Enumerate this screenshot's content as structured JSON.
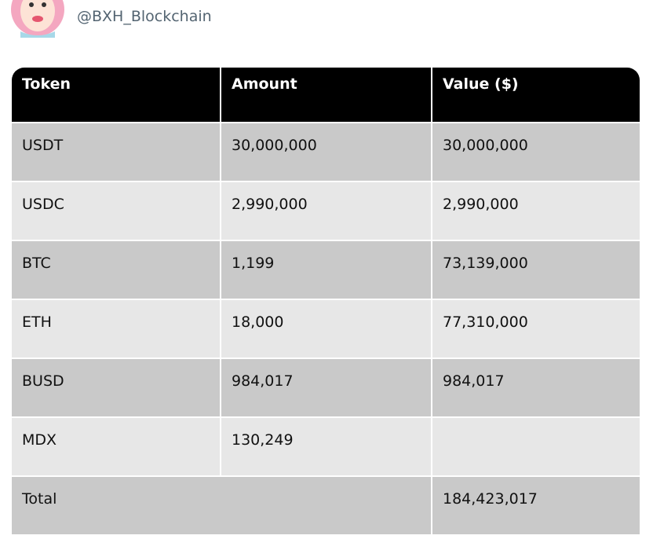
{
  "header": {
    "handle": "@BXH_Blockchain"
  },
  "table": {
    "columns": [
      "Token",
      "Amount",
      "Value ($)"
    ],
    "rows": [
      [
        "USDT",
        "30,000,000",
        "30,000,000"
      ],
      [
        "USDC",
        "2,990,000",
        "2,990,000"
      ],
      [
        "BTC",
        "1,199",
        "73,139,000"
      ],
      [
        "ETH",
        "18,000",
        "77,310,000"
      ],
      [
        "BUSD",
        "984,017",
        "984,017"
      ],
      [
        "MDX",
        "130,249",
        null
      ]
    ],
    "total": {
      "label": "Total",
      "value": "184,423,017"
    }
  }
}
